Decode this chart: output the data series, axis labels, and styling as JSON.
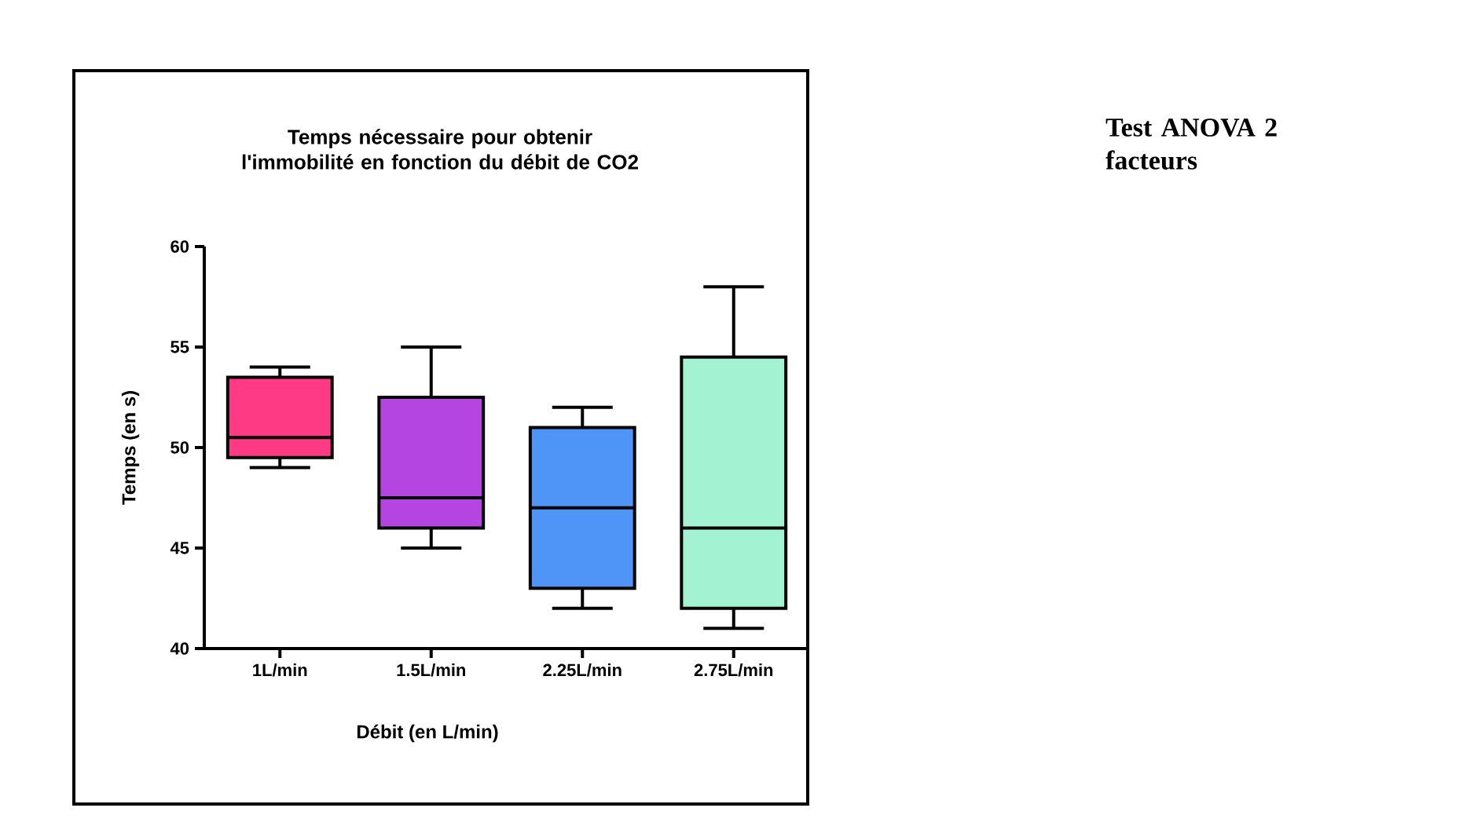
{
  "chart_data": {
    "type": "box",
    "title": "Temps nécessaire pour obtenir l'immobilité en fonction du débit de CO2",
    "xlabel": "Débit (en L/min)",
    "ylabel": "Temps (en s)",
    "categories": [
      "1L/min",
      "1.5L/min",
      "2.25L/min",
      "2.75L/min"
    ],
    "colors": [
      "#ff3a85",
      "#b545e0",
      "#4f94f7",
      "#a3f2d2"
    ],
    "boxes": [
      {
        "low": 49,
        "q1": 49.5,
        "median": 50.5,
        "q3": 53.5,
        "high": 54
      },
      {
        "low": 45,
        "q1": 46,
        "median": 47.5,
        "q3": 52.5,
        "high": 55
      },
      {
        "low": 42,
        "q1": 43,
        "median": 47,
        "q3": 51,
        "high": 52
      },
      {
        "low": 41,
        "q1": 42,
        "median": 46,
        "q3": 54.5,
        "high": 58
      }
    ],
    "ylim": [
      40,
      60
    ],
    "yticks": [
      40,
      45,
      50,
      55,
      60
    ],
    "annotations": [
      "Test ANOVA 2 facteurs"
    ]
  }
}
